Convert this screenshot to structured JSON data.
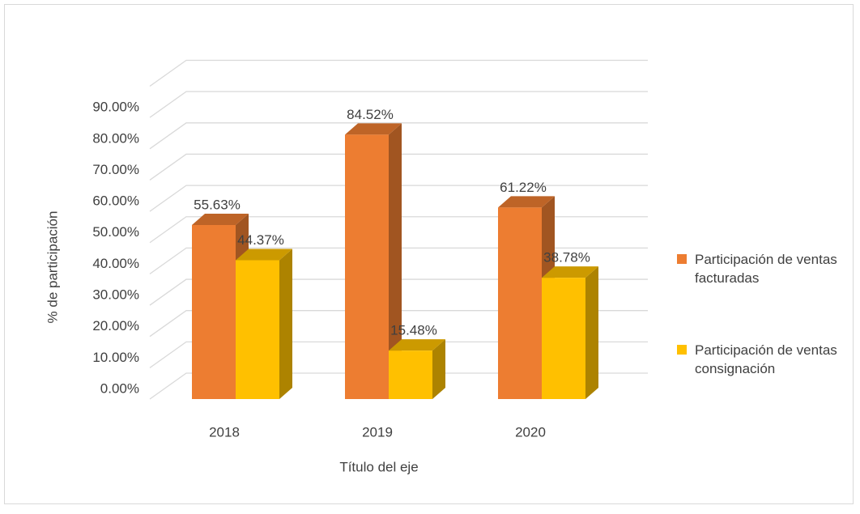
{
  "chart_data": {
    "type": "bar3d",
    "categories": [
      "2018",
      "2019",
      "2020"
    ],
    "series": [
      {
        "name": "Participación de ventas facturadas",
        "color": "#ed7d31",
        "values": [
          55.63,
          84.52,
          61.22
        ],
        "value_labels": [
          "55.63%",
          "84.52%",
          "61.22%"
        ]
      },
      {
        "name": "Participación de ventas consignación",
        "color": "#ffc000",
        "values": [
          44.37,
          15.48,
          38.78
        ],
        "value_labels": [
          "44.37%",
          "15.48%",
          "38.78%"
        ]
      }
    ],
    "ylim": [
      0,
      100
    ],
    "yticks": [
      {
        "value": 0,
        "label": "0.00%"
      },
      {
        "value": 10,
        "label": "10.00%"
      },
      {
        "value": 20,
        "label": "20.00%"
      },
      {
        "value": 30,
        "label": "30.00%"
      },
      {
        "value": 40,
        "label": "40.00%"
      },
      {
        "value": 50,
        "label": "50.00%"
      },
      {
        "value": 60,
        "label": "60.00%"
      },
      {
        "value": 70,
        "label": "70.00%"
      },
      {
        "value": 80,
        "label": "80.00%"
      },
      {
        "value": 90,
        "label": "90.00%"
      }
    ],
    "ylabel": "% de participación",
    "xlabel": "Título del eje",
    "grid": true,
    "legend": "right"
  }
}
